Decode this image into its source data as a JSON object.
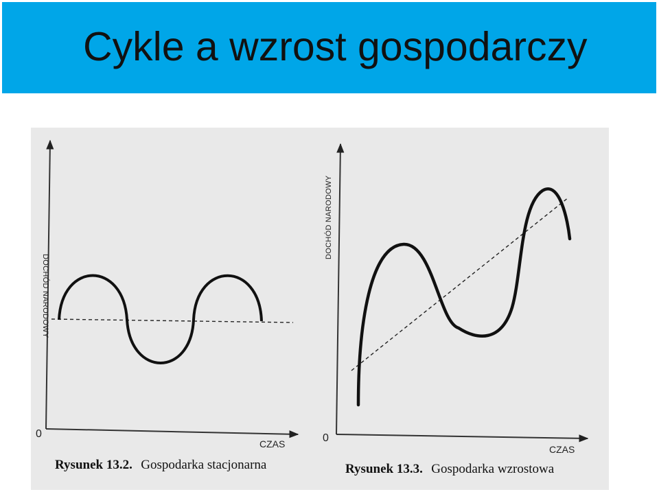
{
  "slide": {
    "title": "Cykle a wzrost gospodarczy"
  },
  "figures": [
    {
      "axis_y_label": "DOCHÓD NARODOWY",
      "axis_x_label": "CZAS",
      "origin_label": "0",
      "caption_number": "Rysunek 13.2.",
      "caption_text": "Gospodarka stacjonarna"
    },
    {
      "axis_y_label": "DOCHÓD NARODOWY",
      "axis_x_label": "CZAS",
      "origin_label": "0",
      "caption_number": "Rysunek 13.3.",
      "caption_text": "Gospodarka wzrostowa"
    }
  ],
  "colors": {
    "title_bar": "#00a6e8",
    "scan_background": "#e9e9e9",
    "ink": "#111111"
  }
}
